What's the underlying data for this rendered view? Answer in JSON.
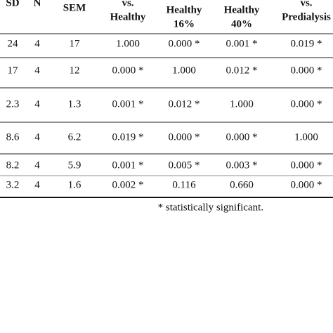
{
  "table": {
    "header": [
      [
        "SD"
      ],
      [
        "N"
      ],
      [
        "SEM"
      ],
      [
        "vs.",
        "Healthy"
      ],
      [
        "Healthy",
        "16%"
      ],
      [
        "Healthy",
        "40%"
      ],
      [
        "vs.",
        "Predialysis"
      ]
    ],
    "rows": [
      [
        "24",
        "4",
        "17",
        "1.000",
        "0.000 *",
        "0.001 *",
        "0.019 *"
      ],
      [
        "17",
        "4",
        "12",
        "0.000 *",
        "1.000",
        "0.012 *",
        "0.000 *"
      ],
      [
        "2.3",
        "4",
        "1.3",
        "0.001 *",
        "0.012 *",
        "1.000",
        "0.000 *"
      ],
      [
        "8.6",
        "4",
        "6.2",
        "0.019 *",
        "0.000 *",
        "0.000 *",
        "1.000"
      ],
      [
        "8.2",
        "4",
        "5.9",
        "0.001 *",
        "0.005 *",
        "0.003 *",
        "0.000 *"
      ],
      [
        "3.2",
        "4",
        "1.6",
        "0.002 *",
        "0.116",
        "0.660",
        "0.000 *"
      ]
    ],
    "footnote": "* statistically significant."
  }
}
